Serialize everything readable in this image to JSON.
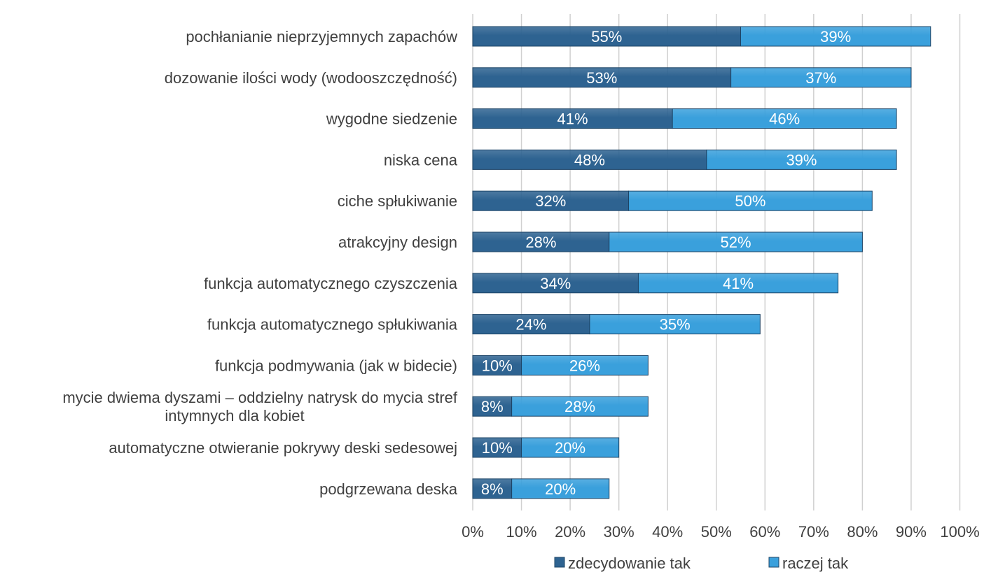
{
  "chart_data": {
    "type": "bar",
    "orientation": "horizontal",
    "stacked": true,
    "categories": [
      "pochłanianie nieprzyjemnych zapachów",
      "dozowanie ilości wody (wodooszczędność)",
      "wygodne siedzenie",
      "niska cena",
      "ciche spłukiwanie",
      "atrakcyjny design",
      "funkcja automatycznego czyszczenia",
      "funkcja automatycznego spłukiwania",
      "funkcja podmywania (jak w bidecie)",
      "mycie dwiema dyszami – oddzielny natrysk do mycia stref intymnych dla kobiet",
      "automatyczne otwieranie pokrywy deski sedesowej",
      "podgrzewana deska"
    ],
    "category_lines": [
      [
        "pochłanianie nieprzyjemnych zapachów"
      ],
      [
        "dozowanie ilości wody (wodooszczędność)"
      ],
      [
        "wygodne siedzenie"
      ],
      [
        "niska cena"
      ],
      [
        "ciche spłukiwanie"
      ],
      [
        "atrakcyjny design"
      ],
      [
        "funkcja automatycznego czyszczenia"
      ],
      [
        "funkcja automatycznego spłukiwania"
      ],
      [
        "funkcja podmywania (jak w bidecie)"
      ],
      [
        "mycie dwiema dyszami – oddzielny natrysk do mycia stref",
        "intymnych dla kobiet"
      ],
      [
        "automatyczne otwieranie pokrywy deski sedesowej"
      ],
      [
        "podgrzewana deska"
      ]
    ],
    "series": [
      {
        "name": "zdecydowanie tak",
        "color": "#2e6391",
        "values": [
          55,
          53,
          41,
          48,
          32,
          28,
          34,
          24,
          10,
          8,
          10,
          8
        ],
        "labels": [
          "55%",
          "53%",
          "41%",
          "48%",
          "32%",
          "28%",
          "34%",
          "24%",
          "10%",
          "8%",
          "10%",
          "8%"
        ]
      },
      {
        "name": "raczej tak",
        "color": "#3aa0dc",
        "values": [
          39,
          37,
          46,
          39,
          50,
          52,
          41,
          35,
          26,
          28,
          20,
          20
        ],
        "labels": [
          "39%",
          "37%",
          "46%",
          "39%",
          "50%",
          "52%",
          "41%",
          "35%",
          "26%",
          "28%",
          "20%",
          "20%"
        ]
      }
    ],
    "xlim": [
      0,
      100
    ],
    "xticks": [
      "0%",
      "10%",
      "20%",
      "30%",
      "40%",
      "50%",
      "60%",
      "70%",
      "80%",
      "90%",
      "100%"
    ],
    "xlabel": "",
    "ylabel": "",
    "grid": "vertical",
    "legend_position": "bottom"
  }
}
